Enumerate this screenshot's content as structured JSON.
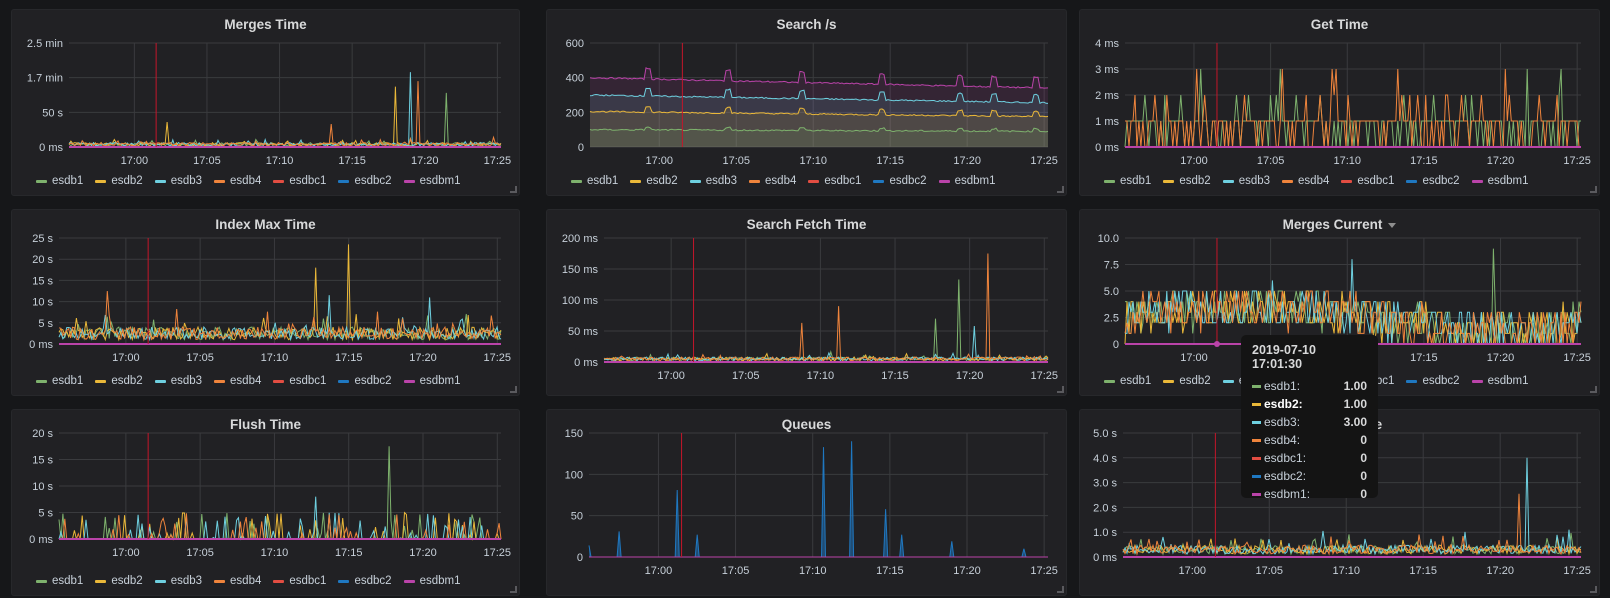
{
  "series_names": [
    "esdb1",
    "esdb2",
    "esdb3",
    "esdb4",
    "esdbc1",
    "esdbc2",
    "esdbm1"
  ],
  "series_colors": {
    "esdb1": "#7eb26d",
    "esdb2": "#eab839",
    "esdb3": "#6ed0e0",
    "esdb4": "#ef843c",
    "esdbc1": "#e24d42",
    "esdbc2": "#1f78c1",
    "esdbm1": "#ba43a9"
  },
  "annotation_color": "#c4162a",
  "x_ticks": [
    "17:00",
    "17:05",
    "17:10",
    "17:15",
    "17:20",
    "17:25"
  ],
  "annotation_time": "17:01:30",
  "chart_data": [
    {
      "id": "merges-time",
      "title": "Merges Time",
      "type": "line",
      "y_ticks": [
        "0 ms",
        "50 s",
        "1.7 min",
        "2.5 min"
      ],
      "ylim_seconds": [
        0,
        150
      ],
      "x_range": [
        "16:55:30",
        "17:25:15"
      ],
      "legend": [
        "esdb1",
        "esdb2",
        "esdb3",
        "esdb4",
        "esdbc1",
        "esdbc2",
        "esdbm1"
      ],
      "peaks": [
        {
          "series": "esdb3",
          "time": "17:19",
          "value": 108
        },
        {
          "series": "esdb4",
          "time": "17:19:30",
          "value": 95
        },
        {
          "series": "esdb2",
          "time": "17:18",
          "value": 87
        },
        {
          "series": "esdb1",
          "time": "17:21:30",
          "value": 78
        },
        {
          "series": "esdb4",
          "time": "17:13:30",
          "value": 33
        },
        {
          "series": "esdb2",
          "time": "17:02:15",
          "value": 36
        }
      ],
      "baseline": 4
    },
    {
      "id": "search-rate",
      "title": "Search /s",
      "type": "area",
      "y_ticks": [
        "0",
        "200",
        "400",
        "600"
      ],
      "ylim": [
        0,
        600
      ],
      "legend": [
        "esdb1",
        "esdb2",
        "esdb3",
        "esdb4",
        "esdbc1",
        "esdbc2",
        "esdbm1"
      ],
      "stacked_levels": {
        "esdb1": 100,
        "esdb2": 205,
        "esdb3": 300,
        "esdbm1": 400
      },
      "end_levels": {
        "esdb1": 90,
        "esdb2": 175,
        "esdb3": 255,
        "esdbm1": 340
      },
      "spike_times": [
        "16:59:15",
        "17:04:30",
        "17:09:15",
        "17:14:30",
        "17:19:30",
        "17:21:45",
        "17:24:30"
      ]
    },
    {
      "id": "get-time",
      "title": "Get Time",
      "type": "line",
      "y_ticks": [
        "0 ms",
        "1 ms",
        "2 ms",
        "3 ms",
        "4 ms"
      ],
      "ylim": [
        0,
        4
      ],
      "legend": [
        "esdb1",
        "esdb2",
        "esdb3",
        "esdb4",
        "esdbc1",
        "esdbc2",
        "esdbm1"
      ],
      "typical_value": 1,
      "max_value": 3
    },
    {
      "id": "index-max-time",
      "title": "Index Max Time",
      "type": "line",
      "y_ticks": [
        "0 ms",
        "5 s",
        "10 s",
        "15 s",
        "20 s",
        "25 s"
      ],
      "ylim": [
        0,
        25
      ],
      "legend": [
        "esdb1",
        "esdb2",
        "esdb3",
        "esdb4",
        "esdbc1",
        "esdbc2",
        "esdbm1"
      ],
      "peaks": [
        {
          "series": "esdb2",
          "time": "17:15",
          "value": 23.5
        },
        {
          "series": "esdb2",
          "time": "17:12:45",
          "value": 18
        },
        {
          "series": "esdb4",
          "time": "16:58:45",
          "value": 12.5
        },
        {
          "series": "esdb3",
          "time": "17:13:45",
          "value": 11.5
        },
        {
          "series": "esdb3",
          "time": "17:20:30",
          "value": 11
        }
      ],
      "baseline": 2.5
    },
    {
      "id": "search-fetch-time",
      "title": "Search Fetch Time",
      "type": "line",
      "y_ticks": [
        "0 ms",
        "50 ms",
        "100 ms",
        "150 ms",
        "200 ms"
      ],
      "ylim": [
        0,
        200
      ],
      "legend": [],
      "peaks": [
        {
          "series": "esdb4",
          "time": "17:21:15",
          "value": 175
        },
        {
          "series": "esdb1",
          "time": "17:19:15",
          "value": 133
        },
        {
          "series": "esdb4",
          "time": "17:11:15",
          "value": 90
        },
        {
          "series": "esdb1",
          "time": "17:17:45",
          "value": 70
        },
        {
          "series": "esdb4",
          "time": "17:08:45",
          "value": 63
        },
        {
          "series": "esdb3",
          "time": "17:20:15",
          "value": 58
        }
      ],
      "baseline": 5
    },
    {
      "id": "merges-current",
      "title": "Merges Current",
      "type": "line",
      "has_menu": true,
      "y_ticks": [
        "0",
        "2.5",
        "5.0",
        "7.5",
        "10.0"
      ],
      "ylim": [
        0,
        10
      ],
      "legend": [
        "esdb1",
        "esdb2",
        "esdb3",
        "esdb4",
        "esdbc1",
        "esdbc2",
        "esdbm1"
      ],
      "peaks": [
        {
          "series": "esdb1",
          "time": "17:19:30",
          "value": 9
        },
        {
          "series": "esdb3",
          "time": "17:10:15",
          "value": 8
        }
      ],
      "baseline": 2.5
    },
    {
      "id": "flush-time",
      "title": "Flush Time",
      "type": "line",
      "y_ticks": [
        "0 ms",
        "5 s",
        "10 s",
        "15 s",
        "20 s"
      ],
      "ylim": [
        0,
        20
      ],
      "legend": [
        "esdb1",
        "esdb2",
        "esdb3",
        "esdb4",
        "esdbc1",
        "esdbc2",
        "esdbm1"
      ],
      "peaks": [
        {
          "series": "esdb1",
          "time": "17:17:45",
          "value": 17.5
        },
        {
          "series": "esdb3",
          "time": "17:12:45",
          "value": 8
        }
      ],
      "baseline": 0
    },
    {
      "id": "queues",
      "title": "Queues",
      "type": "area",
      "y_ticks": [
        "0",
        "50",
        "100",
        "150"
      ],
      "ylim": [
        0,
        150
      ],
      "legend": [],
      "peaks": [
        {
          "series": "esdbc2",
          "time": "16:55:30",
          "value": 14
        },
        {
          "series": "esdbc2",
          "time": "16:57:30",
          "value": 31
        },
        {
          "series": "esdbc2",
          "time": "17:01:15",
          "value": 81
        },
        {
          "series": "esdbc2",
          "time": "17:02:30",
          "value": 27
        },
        {
          "series": "esdbc2",
          "time": "17:10:45",
          "value": 133
        },
        {
          "series": "esdbc2",
          "time": "17:12:30",
          "value": 140
        },
        {
          "series": "esdbc2",
          "time": "17:14:45",
          "value": 58
        },
        {
          "series": "esdbc2",
          "time": "17:15:45",
          "value": 27
        },
        {
          "series": "esdbc2",
          "time": "17:19",
          "value": 19
        },
        {
          "series": "esdbc2",
          "time": "17:23:45",
          "value": 10
        }
      ],
      "baseline": 0
    },
    {
      "id": "refresh-time",
      "title": "Refresh Time",
      "title_visible": "me",
      "type": "line",
      "y_ticks": [
        "0 ms",
        "1.0 s",
        "2.0 s",
        "3.0 s",
        "4.0 s",
        "5.0 s"
      ],
      "ylim": [
        0,
        5
      ],
      "legend": [],
      "peaks": [
        {
          "series": "esdb3",
          "time": "17:21:45",
          "value": 4.0
        },
        {
          "series": "esdb4",
          "time": "17:21:15",
          "value": 2.55
        },
        {
          "series": "esdb3",
          "time": "17:24:30",
          "value": 1.1
        },
        {
          "series": "esdb3",
          "time": "17:08:30",
          "value": 1.05
        }
      ],
      "baseline": 0.3
    }
  ],
  "tooltip": {
    "time": "2019-07-10 17:01:30",
    "rows": [
      {
        "name": "esdb1:",
        "value": "1.00",
        "bold": false
      },
      {
        "name": "esdb2:",
        "value": "1.00",
        "bold": true
      },
      {
        "name": "esdb3:",
        "value": "3.00",
        "bold": false
      },
      {
        "name": "esdb4:",
        "value": "0",
        "bold": false
      },
      {
        "name": "esdbc1:",
        "value": "0",
        "bold": false
      },
      {
        "name": "esdbc2:",
        "value": "0",
        "bold": false
      },
      {
        "name": "esdbm1:",
        "value": "0",
        "bold": false
      }
    ]
  }
}
